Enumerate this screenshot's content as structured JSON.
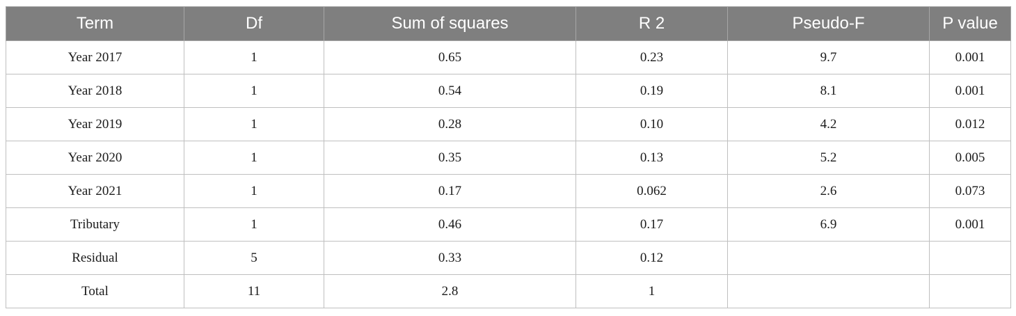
{
  "table": {
    "headers": [
      "Term",
      "Df",
      "Sum of squares",
      "R 2",
      "Pseudo-F",
      "P value"
    ],
    "rows": [
      [
        "Year 2017",
        "1",
        "0.65",
        "0.23",
        "9.7",
        "0.001"
      ],
      [
        "Year 2018",
        "1",
        "0.54",
        "0.19",
        "8.1",
        "0.001"
      ],
      [
        "Year 2019",
        "1",
        "0.28",
        "0.10",
        "4.2",
        "0.012"
      ],
      [
        "Year 2020",
        "1",
        "0.35",
        "0.13",
        "5.2",
        "0.005"
      ],
      [
        "Year 2021",
        "1",
        "0.17",
        "0.062",
        "2.6",
        "0.073"
      ],
      [
        "Tributary",
        "1",
        "0.46",
        "0.17",
        "6.9",
        "0.001"
      ],
      [
        "Residual",
        "5",
        "0.33",
        "0.12",
        "",
        ""
      ],
      [
        "Total",
        "11",
        "2.8",
        "1",
        "",
        ""
      ]
    ]
  }
}
